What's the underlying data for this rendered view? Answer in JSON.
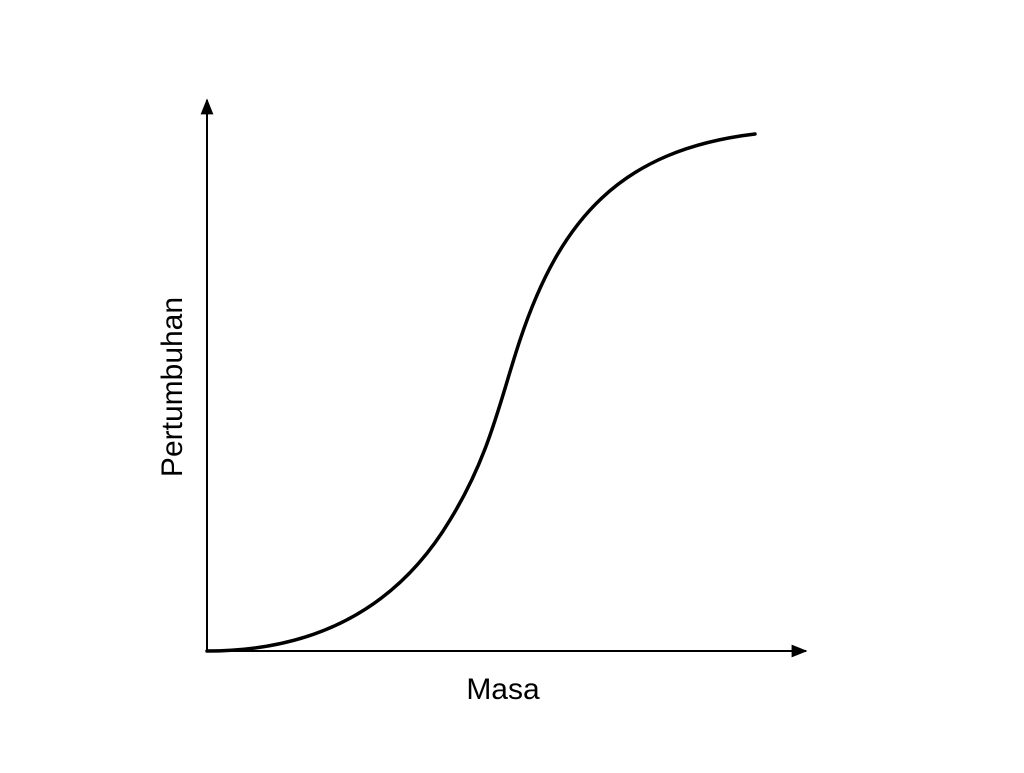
{
  "x_axis": {
    "label": "Masa"
  },
  "y_axis": {
    "label": "Pertumbuhan"
  }
}
